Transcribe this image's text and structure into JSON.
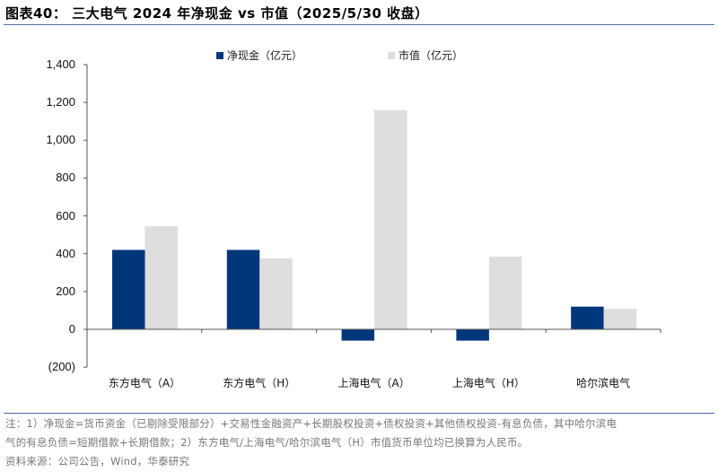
{
  "header": {
    "title": "图表40：  三大电气 2024 年净现金 vs 市值（2025/5/30 收盘）"
  },
  "legend": [
    {
      "label": "净现金（亿元）",
      "color": "#00377a"
    },
    {
      "label": "市值（亿元）",
      "color": "#dedede"
    }
  ],
  "chart_data": {
    "type": "bar",
    "title": "三大电气 2024 年净现金 vs 市值（2025/5/30 收盘）",
    "xlabel": "",
    "ylabel": "",
    "categories": [
      "东方电气（A）",
      "东方电气（H）",
      "上海电气（A）",
      "上海电气（H）",
      "哈尔滨电气"
    ],
    "series": [
      {
        "name": "净现金（亿元）",
        "color": "#00377a",
        "values": [
          420,
          420,
          -60,
          -60,
          120
        ]
      },
      {
        "name": "市值（亿元）",
        "color": "#dedede",
        "values": [
          545,
          375,
          1160,
          385,
          108
        ]
      }
    ],
    "ylim": [
      -200,
      1400
    ],
    "yticks": [
      1400,
      1200,
      1000,
      800,
      600,
      400,
      200,
      0,
      -200
    ],
    "ytick_labels": [
      "1,400",
      "1,200",
      "1,000",
      "800",
      "600",
      "400",
      "200",
      "0",
      "(200)"
    ],
    "grid": false,
    "legend_position": "top"
  },
  "notes": {
    "line1": "注：1）净现金=货币资金（已剔除受限部分）+交易性金融资产+长期股权投资+债权投资+其他债权投资-有息负债，其中哈尔滨电",
    "line2": "气的有息负债=短期借款+长期借款；2）东方电气/上海电气/哈尔滨电气（H）市值货币单位均已换算为人民币。",
    "source": "资料来源：公司公告，Wind，华泰研究"
  }
}
